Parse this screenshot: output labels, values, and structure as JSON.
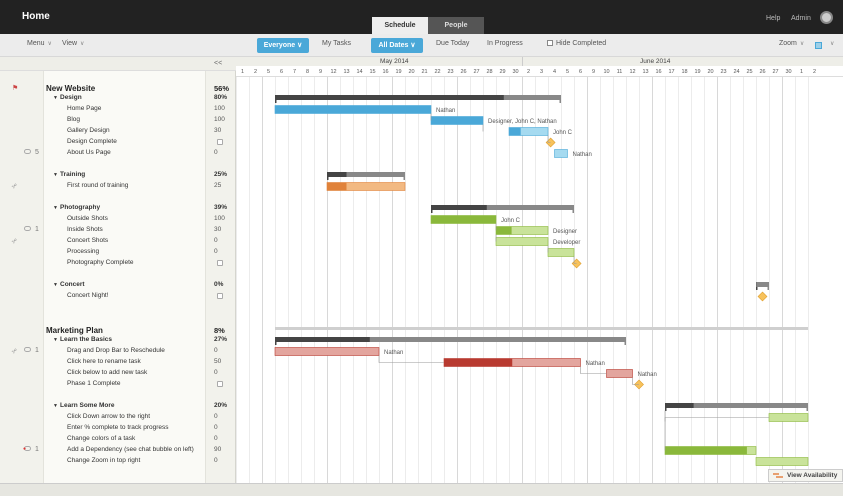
{
  "app": {
    "title": "Home"
  },
  "tabs": [
    "Schedule",
    "People"
  ],
  "header_links": {
    "help": "Help",
    "admin": "Admin"
  },
  "toolbar": {
    "menu": "Menu",
    "view": "View",
    "everyone": "Everyone",
    "my_tasks": "My Tasks",
    "all_dates": "All Dates",
    "due_today": "Due Today",
    "in_progress": "In Progress",
    "hide_completed": "Hide Completed",
    "zoom": "Zoom"
  },
  "colors": {
    "accent": "#4aa8d8",
    "blue": "#4aa8d8",
    "light_blue": "#a5daf0",
    "orange": "#e0823a",
    "light_orange": "#f2b982",
    "green": "#8ab83b",
    "light_green": "#c9e39a",
    "red": "#b83a30",
    "light_red": "#e3a59e",
    "milestone": "#f7c25c",
    "summary": "#555555"
  },
  "collapse_label": "<<",
  "timeline": {
    "months": [
      {
        "label": "May 2014",
        "day_index": 11
      },
      {
        "label": "June 2014",
        "day_index": 31
      }
    ],
    "days": [
      "1",
      "2",
      "5",
      "6",
      "7",
      "8",
      "9",
      "12",
      "13",
      "14",
      "15",
      "16",
      "19",
      "20",
      "21",
      "22",
      "23",
      "26",
      "27",
      "28",
      "29",
      "30",
      "2",
      "3",
      "4",
      "5",
      "6",
      "9",
      "10",
      "11",
      "12",
      "13",
      "16",
      "17",
      "18",
      "19",
      "20",
      "23",
      "24",
      "25",
      "26",
      "27",
      "30",
      "1",
      "2"
    ]
  },
  "rows": [
    {
      "type": "project",
      "name": "New Website",
      "pct": "56%"
    },
    {
      "type": "group",
      "name": "Design",
      "pct": "80%"
    },
    {
      "type": "task",
      "name": "Home Page",
      "pct": "100"
    },
    {
      "type": "task",
      "name": "Blog",
      "pct": "100"
    },
    {
      "type": "task",
      "name": "Gallery Design",
      "pct": "30"
    },
    {
      "type": "task",
      "name": "Design Complete",
      "milestone": true
    },
    {
      "type": "task",
      "name": "About Us Page",
      "pct": "0",
      "comments": "5"
    },
    {
      "type": "blank"
    },
    {
      "type": "group",
      "name": "Training",
      "pct": "25%"
    },
    {
      "type": "task",
      "name": "First round of training",
      "pct": "25",
      "attachment": true
    },
    {
      "type": "blank"
    },
    {
      "type": "group",
      "name": "Photography",
      "pct": "39%"
    },
    {
      "type": "task",
      "name": "Outside Shots",
      "pct": "100"
    },
    {
      "type": "task",
      "name": "Inside Shots",
      "pct": "30",
      "comments": "1"
    },
    {
      "type": "task",
      "name": "Concert Shots",
      "pct": "0",
      "attachment": true
    },
    {
      "type": "task",
      "name": "Processing",
      "pct": "0"
    },
    {
      "type": "task",
      "name": "Photography Complete",
      "milestone": true
    },
    {
      "type": "blank"
    },
    {
      "type": "group",
      "name": "Concert",
      "pct": "0%"
    },
    {
      "type": "task",
      "name": "Concert Night!",
      "milestone": true
    },
    {
      "type": "blank"
    },
    {
      "type": "blank"
    },
    {
      "type": "project",
      "name": "Marketing Plan",
      "pct": "8%"
    },
    {
      "type": "group",
      "name": "Learn the Basics",
      "pct": "27%"
    },
    {
      "type": "task",
      "name": "Drag and Drop Bar to Reschedule",
      "pct": "0",
      "attachment": true,
      "comments": "1"
    },
    {
      "type": "task",
      "name": "Click here to rename task",
      "pct": "50"
    },
    {
      "type": "task",
      "name": "Click below to add new task",
      "pct": "0"
    },
    {
      "type": "task",
      "name": "Phase 1 Complete",
      "milestone": true
    },
    {
      "type": "blank"
    },
    {
      "type": "group",
      "name": "Learn Some More",
      "pct": "20%"
    },
    {
      "type": "task",
      "name": "Click Down arrow to the right",
      "pct": "0"
    },
    {
      "type": "task",
      "name": "Enter % complete to track progress",
      "pct": "0"
    },
    {
      "type": "task",
      "name": "Change colors of a task",
      "pct": "0"
    },
    {
      "type": "task",
      "name": "Add a Dependency (see chat bubble on left)",
      "pct": "90",
      "comments": "1",
      "alert": true
    },
    {
      "type": "task",
      "name": "Change Zoom in top right",
      "pct": "0"
    }
  ],
  "bars": [
    {
      "row": 1,
      "kind": "summary",
      "start": 3,
      "end": 25,
      "progress": 0.8
    },
    {
      "row": 2,
      "kind": "task",
      "color": "blue",
      "start": 3,
      "end": 15,
      "progress": 1,
      "label": "Nathan"
    },
    {
      "row": 3,
      "kind": "task",
      "color": "blue",
      "start": 15,
      "end": 19,
      "progress": 1,
      "label": "Designer, John C, Nathan"
    },
    {
      "row": 4,
      "kind": "task",
      "color": "blue",
      "start": 21,
      "end": 24,
      "progress": 0.3,
      "label": "John C"
    },
    {
      "row": 5,
      "kind": "milestone",
      "at": 24.2
    },
    {
      "row": 6,
      "kind": "task",
      "color": "blue",
      "start": 24.5,
      "end": 25.5,
      "progress": 0,
      "label": "Nathan"
    },
    {
      "row": 8,
      "kind": "summary",
      "start": 7,
      "end": 13,
      "progress": 0.25
    },
    {
      "row": 9,
      "kind": "task",
      "color": "orange",
      "start": 7,
      "end": 13,
      "progress": 0.25
    },
    {
      "row": 11,
      "kind": "summary",
      "start": 15,
      "end": 26,
      "progress": 0.39
    },
    {
      "row": 12,
      "kind": "task",
      "color": "green",
      "start": 15,
      "end": 20,
      "progress": 1,
      "label": "John C"
    },
    {
      "row": 13,
      "kind": "task",
      "color": "green",
      "start": 20,
      "end": 24,
      "progress": 0.3,
      "label": "Designer"
    },
    {
      "row": 14,
      "kind": "task",
      "color": "green",
      "start": 20,
      "end": 24,
      "progress": 0,
      "label": "Developer"
    },
    {
      "row": 15,
      "kind": "task",
      "color": "green",
      "start": 24,
      "end": 26,
      "progress": 0
    },
    {
      "row": 16,
      "kind": "milestone",
      "at": 26.2
    },
    {
      "row": 18,
      "kind": "summary",
      "start": 40,
      "end": 41,
      "progress": 0
    },
    {
      "row": 19,
      "kind": "milestone",
      "at": 40.5
    },
    {
      "row": 22,
      "kind": "summary",
      "start": 3,
      "end": 44,
      "progress": 0.08
    },
    {
      "row": 23,
      "kind": "summary",
      "start": 3,
      "end": 30,
      "progress": 0.27
    },
    {
      "row": 24,
      "kind": "task",
      "color": "red",
      "start": 3,
      "end": 11,
      "progress": 0,
      "label": "Nathan"
    },
    {
      "row": 25,
      "kind": "task",
      "color": "red",
      "start": 16,
      "end": 26.5,
      "progress": 0.5,
      "label": "Nathan"
    },
    {
      "row": 26,
      "kind": "task",
      "color": "red",
      "start": 28.5,
      "end": 30.5,
      "progress": 0,
      "label": "Nathan"
    },
    {
      "row": 27,
      "kind": "milestone",
      "at": 31
    },
    {
      "row": 29,
      "kind": "summary",
      "start": 33,
      "end": 44,
      "progress": 0.2
    },
    {
      "row": 30,
      "kind": "task",
      "color": "green",
      "start": 41,
      "end": 44,
      "progress": 0
    },
    {
      "row": 33,
      "kind": "task",
      "color": "green",
      "start": 33,
      "end": 40,
      "progress": 0.9
    },
    {
      "row": 34,
      "kind": "task",
      "color": "green",
      "start": 40,
      "end": 44,
      "progress": 0
    }
  ],
  "view_availability": "View Availability"
}
